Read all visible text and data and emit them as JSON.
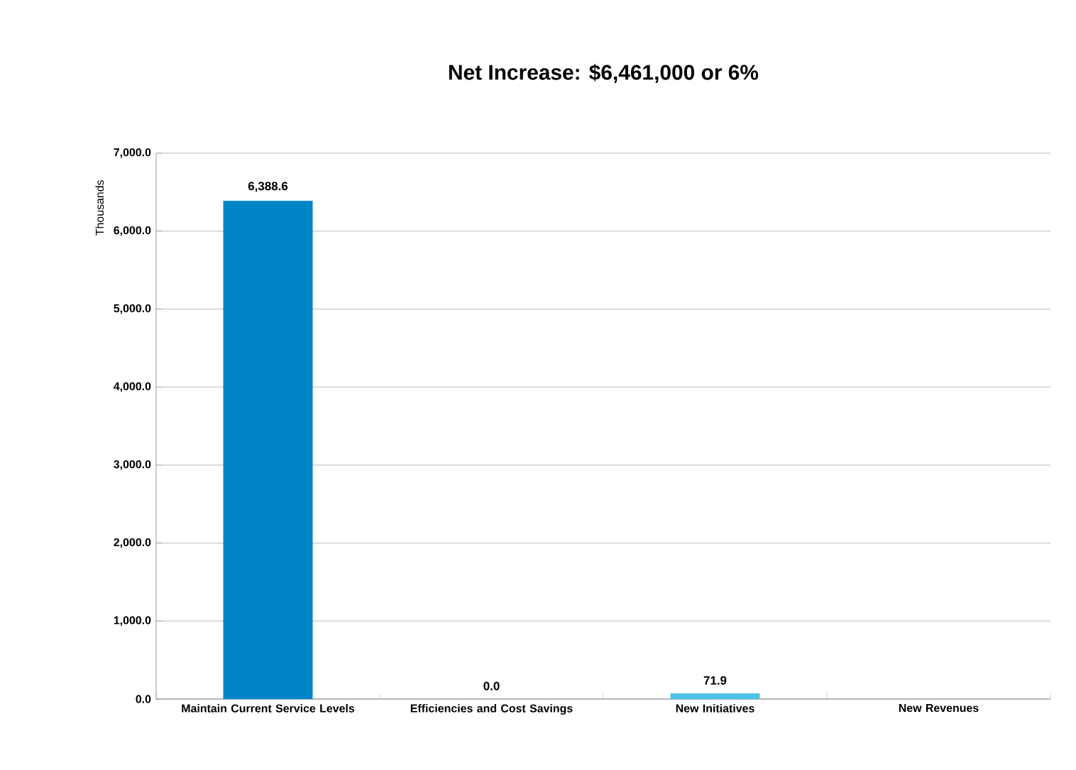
{
  "chart_data": {
    "type": "bar",
    "title": "Net Increase: $6,461,000 or 6%",
    "ylabel": "Thousands",
    "categories": [
      "Maintain Current Service Levels",
      "Efficiencies and Cost Savings",
      "New Initiatives",
      "New Revenues"
    ],
    "values": [
      6388.6,
      0.0,
      71.9,
      null
    ],
    "colors": [
      "#0084c8",
      "#0084c8",
      "#4dc3e8",
      "#0084c8"
    ],
    "value_labels": [
      "6,388.6",
      "0.0",
      "71.9",
      null
    ],
    "ylim": [
      0,
      7000
    ],
    "yticks": [
      {
        "value": 0,
        "label": "0.0"
      },
      {
        "value": 1000,
        "label": "1,000.0"
      },
      {
        "value": 2000,
        "label": "2,000.0"
      },
      {
        "value": 3000,
        "label": "3,000.0"
      },
      {
        "value": 4000,
        "label": "4,000.0"
      },
      {
        "value": 5000,
        "label": "5,000.0"
      },
      {
        "value": 6000,
        "label": "6,000.0"
      },
      {
        "value": 7000,
        "label": "7,000.0"
      }
    ],
    "grid": "y"
  }
}
